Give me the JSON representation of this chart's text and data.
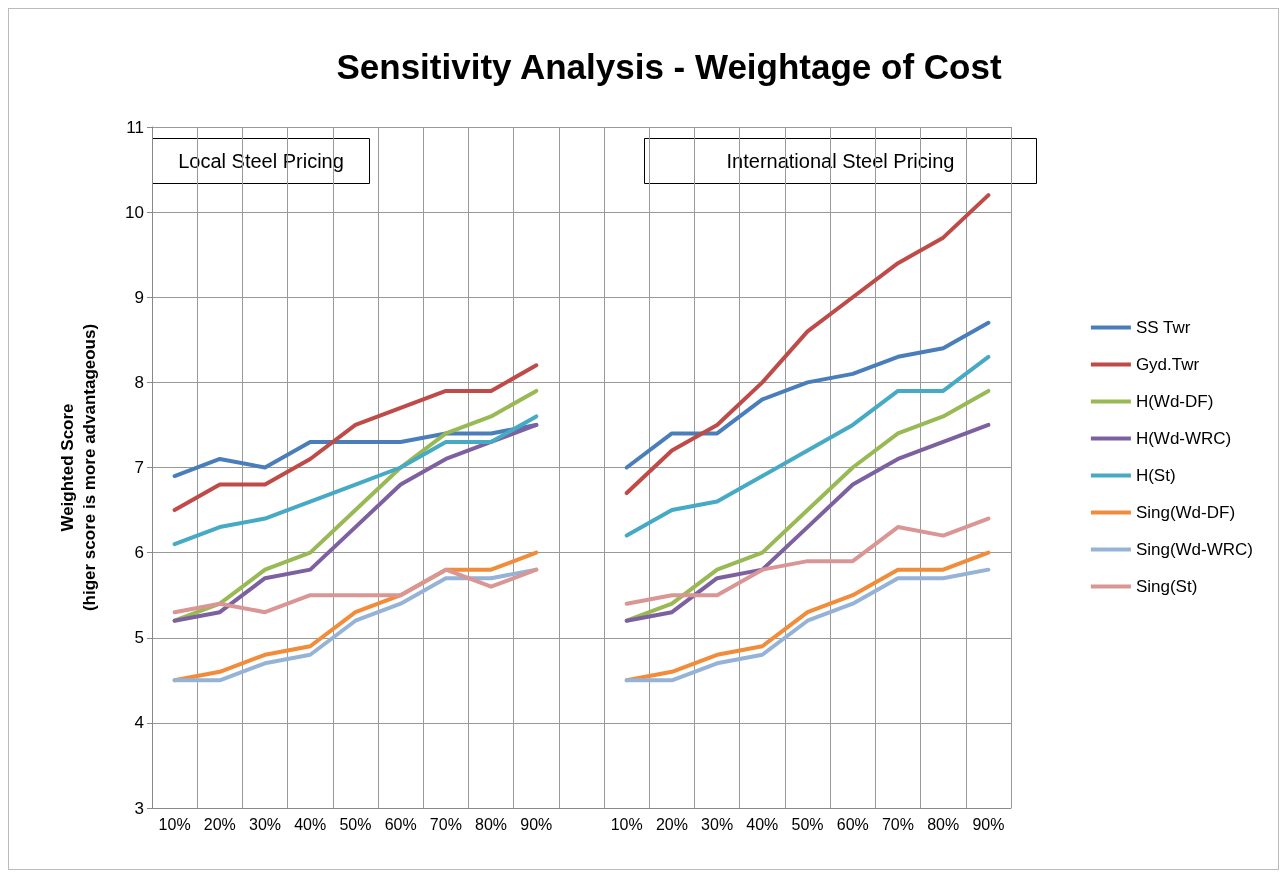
{
  "chart_data": {
    "type": "line",
    "title": "Sensitivity Analysis - Weightage of Cost",
    "ylabel": "Weighted Score\n(higer score is more advantageous)",
    "categories": [
      "10%",
      "20%",
      "30%",
      "40%",
      "50%",
      "60%",
      "70%",
      "80%",
      "90%",
      null,
      "10%",
      "20%",
      "30%",
      "40%",
      "50%",
      "60%",
      "70%",
      "80%",
      "90%"
    ],
    "series": [
      {
        "name": "SS Twr",
        "color": "#4a7ebb",
        "values": [
          6.9,
          7.1,
          7.0,
          7.3,
          7.3,
          7.3,
          7.4,
          7.4,
          7.5,
          null,
          7.0,
          7.4,
          7.4,
          7.8,
          8.0,
          8.1,
          8.3,
          8.4,
          8.7
        ]
      },
      {
        "name": "Gyd.Twr",
        "color": "#be4b48",
        "values": [
          6.5,
          6.8,
          6.8,
          7.1,
          7.5,
          7.7,
          7.9,
          7.9,
          8.2,
          null,
          6.7,
          7.2,
          7.5,
          8.0,
          8.6,
          9.0,
          9.4,
          9.7,
          10.2
        ]
      },
      {
        "name": "H(Wd-DF)",
        "color": "#98b954",
        "values": [
          5.2,
          5.4,
          5.8,
          6.0,
          6.5,
          7.0,
          7.4,
          7.6,
          7.9,
          null,
          5.2,
          5.4,
          5.8,
          6.0,
          6.5,
          7.0,
          7.4,
          7.6,
          7.9
        ]
      },
      {
        "name": "H(Wd-WRC)",
        "color": "#7d60a0",
        "values": [
          5.2,
          5.3,
          5.7,
          5.8,
          6.3,
          6.8,
          7.1,
          7.3,
          7.5,
          null,
          5.2,
          5.3,
          5.7,
          5.8,
          6.3,
          6.8,
          7.1,
          7.3,
          7.5
        ]
      },
      {
        "name": "H(St)",
        "color": "#46aac5",
        "values": [
          6.1,
          6.3,
          6.4,
          6.6,
          6.8,
          7.0,
          7.3,
          7.3,
          7.6,
          null,
          6.2,
          6.5,
          6.6,
          6.9,
          7.2,
          7.5,
          7.9,
          7.9,
          8.3
        ]
      },
      {
        "name": "Sing(Wd-DF)",
        "color": "#f08c3a",
        "values": [
          4.5,
          4.6,
          4.8,
          4.9,
          5.3,
          5.5,
          5.8,
          5.8,
          6.0,
          null,
          4.5,
          4.6,
          4.8,
          4.9,
          5.3,
          5.5,
          5.8,
          5.8,
          6.0
        ]
      },
      {
        "name": "Sing(Wd-WRC)",
        "color": "#95b3d7",
        "values": [
          4.5,
          4.5,
          4.7,
          4.8,
          5.2,
          5.4,
          5.7,
          5.7,
          5.8,
          null,
          4.5,
          4.5,
          4.7,
          4.8,
          5.2,
          5.4,
          5.7,
          5.7,
          5.8
        ]
      },
      {
        "name": "Sing(St)",
        "color": "#d99694",
        "values": [
          5.3,
          5.4,
          5.3,
          5.5,
          5.5,
          5.5,
          5.8,
          5.6,
          5.8,
          null,
          5.4,
          5.5,
          5.5,
          5.8,
          5.9,
          5.9,
          6.3,
          6.2,
          6.4
        ]
      }
    ],
    "annotations": [
      "Local Steel Pricing",
      "International Steel Pricing"
    ],
    "ylim": [
      3,
      11
    ],
    "yticks": [
      3,
      4,
      5,
      6,
      7,
      8,
      9,
      10,
      11
    ],
    "grid": true,
    "legend": "right",
    "marker": "none",
    "line_style": "solid"
  }
}
